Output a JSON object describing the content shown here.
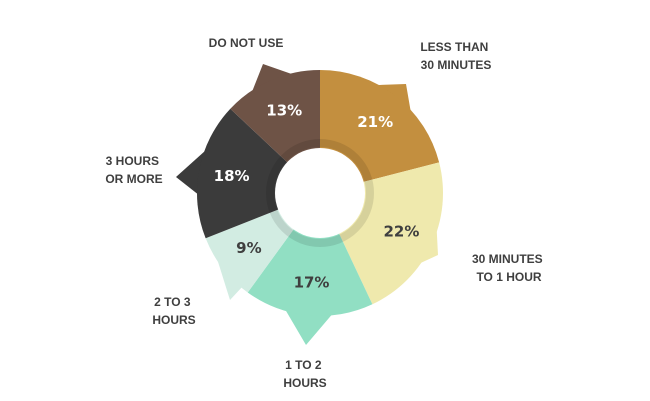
{
  "chart_data": {
    "type": "pie",
    "variant": "donut-with-callout-pointers",
    "title": "",
    "categories": [
      "LESS THAN 30 MINUTES",
      "30 MINUTES TO 1 HOUR",
      "1 TO 2 HOURS",
      "2 TO 3 HOURS",
      "3 HOURS OR MORE",
      "DO NOT USE"
    ],
    "values": [
      21,
      22,
      17,
      9,
      18,
      13
    ],
    "value_labels": [
      "21%",
      "22%",
      "17%",
      "9%",
      "18%",
      "13%"
    ],
    "category_label_lines": [
      [
        "LESS THAN",
        "30 MINUTES"
      ],
      [
        "30 MINUTES",
        "TO 1 HOUR"
      ],
      [
        "1 TO 2",
        "HOURS"
      ],
      [
        "2 TO 3",
        "HOURS"
      ],
      [
        "3 HOURS",
        "OR MORE"
      ],
      [
        "DO NOT USE"
      ]
    ],
    "colors": [
      "#c38f3f",
      "#efe9ad",
      "#91dfc3",
      "#d2ece2",
      "#3b3b3b",
      "#6e5346"
    ],
    "value_label_colors": [
      "#ffffff",
      "#3f3f3f",
      "#3f3f3f",
      "#3f3f3f",
      "#ffffff",
      "#ffffff"
    ],
    "start_position": "top",
    "direction": "clockwise",
    "legend": "none"
  }
}
